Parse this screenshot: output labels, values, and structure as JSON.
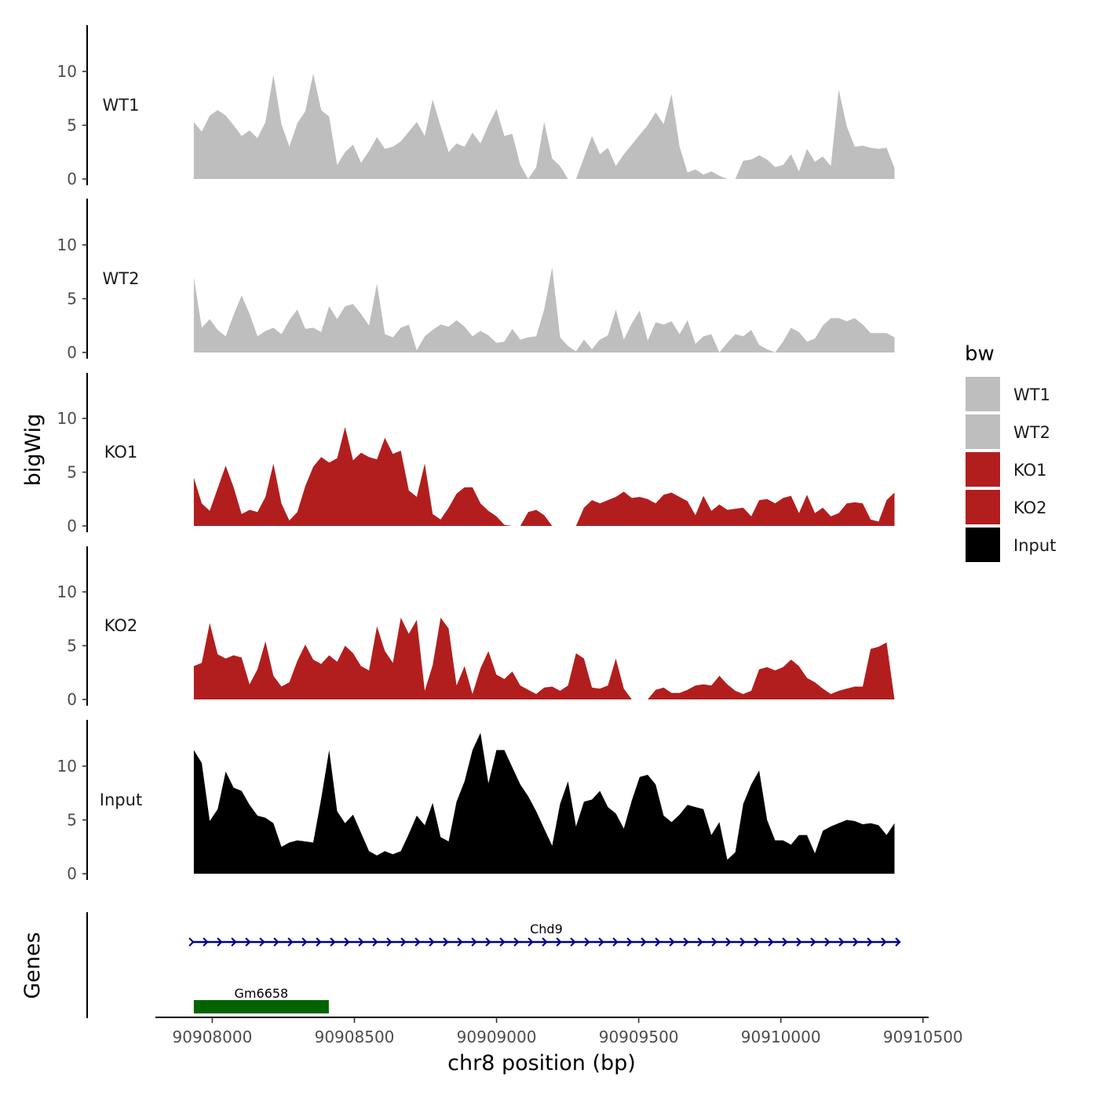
{
  "chart_data": {
    "type": "area",
    "y_axis_label": "bigWig",
    "x_axis_label": "chr8 position (bp)",
    "x_range": [
      90907800,
      90910520
    ],
    "data_x_range": [
      90907935,
      90910400
    ],
    "y_range": [
      0,
      14
    ],
    "y_ticks": [
      "0",
      "5",
      "10"
    ],
    "x_ticks": [
      "90908000",
      "90908500",
      "90909000",
      "90909500",
      "90910000",
      "90910500"
    ],
    "legend": {
      "title": "bw",
      "position": "right",
      "items": [
        {
          "label": "WT1",
          "color": "#bebebe"
        },
        {
          "label": "WT2",
          "color": "#bebebe"
        },
        {
          "label": "KO1",
          "color": "#b21e1e"
        },
        {
          "label": "KO2",
          "color": "#b21e1e"
        },
        {
          "label": "Input",
          "color": "#000000"
        }
      ]
    },
    "series": [
      {
        "name": "WT1",
        "color": "#bebebe",
        "values": [
          5.3,
          4.4,
          5.9,
          6.4,
          5.9,
          5.0,
          4.0,
          4.5,
          3.8,
          5.3,
          9.7,
          5.1,
          3.0,
          5.2,
          6.3,
          9.8,
          6.4,
          5.8,
          1.3,
          2.5,
          3.2,
          1.5,
          2.6,
          3.9,
          2.8,
          3.0,
          3.5,
          4.4,
          5.3,
          4.0,
          7.4,
          4.9,
          2.5,
          3.3,
          3.0,
          4.3,
          3.3,
          5.0,
          6.5,
          4.0,
          4.2,
          1.3,
          0.0,
          1.1,
          5.3,
          1.9,
          1.2,
          0.0,
          0.0,
          2.0,
          4.0,
          2.3,
          2.9,
          1.2,
          2.3,
          3.2,
          4.1,
          5.0,
          6.2,
          5.1,
          7.9,
          3.0,
          0.6,
          0.9,
          0.4,
          0.7,
          0.3,
          0.0,
          0.0,
          1.7,
          1.8,
          2.2,
          1.8,
          1.1,
          1.3,
          2.3,
          0.7,
          2.8,
          1.6,
          2.1,
          1.2,
          8.3,
          4.9,
          3.0,
          3.1,
          2.9,
          2.8,
          2.9,
          1.0
        ]
      },
      {
        "name": "WT2",
        "color": "#bebebe",
        "values": [
          7.0,
          2.3,
          3.1,
          2.1,
          1.5,
          3.5,
          5.3,
          3.6,
          1.5,
          2.0,
          2.3,
          1.7,
          3.0,
          4.0,
          2.2,
          2.3,
          1.9,
          4.3,
          3.1,
          4.3,
          4.5,
          3.6,
          2.5,
          6.4,
          1.7,
          1.4,
          2.3,
          2.6,
          0.2,
          1.5,
          2.1,
          2.6,
          2.4,
          3.0,
          2.4,
          1.5,
          2.0,
          1.6,
          0.9,
          1.0,
          2.2,
          1.2,
          1.4,
          1.5,
          4.0,
          7.9,
          1.4,
          0.6,
          0.1,
          1.2,
          0.3,
          1.2,
          1.6,
          4.0,
          1.2,
          2.7,
          3.9,
          1.1,
          2.8,
          2.6,
          2.9,
          1.7,
          3.0,
          0.8,
          1.5,
          1.7,
          0.0,
          0.9,
          1.7,
          1.5,
          2.1,
          0.7,
          0.3,
          0.0,
          1.0,
          2.3,
          1.9,
          1.0,
          1.3,
          2.5,
          3.2,
          3.2,
          2.9,
          3.2,
          2.6,
          1.8,
          1.8,
          1.8,
          1.4
        ]
      },
      {
        "name": "KO1",
        "color": "#b21e1e",
        "values": [
          4.5,
          2.1,
          1.4,
          3.5,
          5.6,
          3.6,
          1.1,
          1.5,
          1.3,
          2.7,
          5.8,
          2.1,
          0.5,
          1.3,
          3.7,
          5.5,
          6.4,
          5.9,
          6.3,
          9.2,
          6.1,
          6.8,
          6.4,
          6.2,
          8.2,
          6.7,
          7.0,
          3.3,
          2.7,
          5.8,
          1.1,
          0.6,
          1.7,
          3.0,
          3.6,
          3.6,
          2.1,
          1.4,
          0.9,
          0.1,
          0.0,
          0.0,
          1.3,
          1.5,
          1.0,
          0.0,
          0.0,
          0.0,
          0.0,
          1.7,
          2.4,
          2.1,
          2.4,
          2.7,
          3.2,
          2.6,
          2.7,
          2.5,
          2.1,
          2.9,
          3.1,
          2.7,
          2.3,
          1.0,
          2.8,
          1.4,
          2.0,
          1.5,
          1.6,
          1.7,
          0.9,
          2.4,
          2.5,
          2.1,
          2.6,
          2.8,
          1.2,
          2.9,
          1.2,
          1.7,
          0.9,
          1.2,
          2.1,
          2.2,
          2.1,
          0.6,
          0.4,
          2.4,
          3.1
        ]
      },
      {
        "name": "KO2",
        "color": "#b21e1e",
        "values": [
          3.1,
          3.4,
          7.1,
          4.2,
          3.8,
          4.1,
          3.9,
          1.4,
          2.8,
          5.4,
          2.2,
          1.2,
          1.6,
          3.6,
          5.1,
          3.7,
          3.3,
          4.1,
          3.5,
          5.0,
          4.3,
          3.1,
          2.7,
          6.8,
          4.5,
          3.4,
          7.6,
          6.1,
          7.4,
          0.8,
          3.2,
          7.6,
          6.6,
          1.3,
          3.1,
          0.5,
          2.9,
          4.5,
          2.3,
          1.9,
          2.6,
          1.3,
          0.9,
          0.5,
          1.1,
          1.2,
          0.8,
          1.3,
          4.3,
          3.8,
          1.1,
          1.0,
          1.3,
          3.8,
          1.0,
          0.0,
          0.0,
          0.0,
          0.9,
          1.1,
          0.6,
          0.6,
          0.9,
          1.3,
          1.4,
          1.3,
          2.2,
          1.4,
          0.8,
          0.5,
          0.8,
          2.8,
          3.0,
          2.7,
          3.0,
          3.7,
          3.1,
          2.0,
          1.6,
          1.0,
          0.5,
          0.8,
          1.0,
          1.2,
          1.2,
          4.7,
          4.9,
          5.3,
          0.0
        ]
      },
      {
        "name": "Input",
        "color": "#000000",
        "values": [
          11.5,
          10.3,
          4.9,
          6.0,
          9.5,
          8.0,
          7.7,
          6.4,
          5.4,
          5.2,
          4.7,
          2.5,
          2.9,
          3.1,
          3.0,
          2.9,
          7.0,
          11.5,
          5.8,
          4.7,
          5.5,
          3.8,
          2.1,
          1.7,
          2.1,
          1.8,
          2.1,
          3.7,
          5.4,
          4.5,
          6.6,
          3.4,
          3.0,
          6.7,
          8.6,
          11.5,
          13.1,
          8.4,
          11.5,
          11.5,
          9.9,
          8.3,
          7.2,
          5.8,
          4.2,
          2.6,
          6.5,
          8.6,
          4.4,
          6.7,
          6.9,
          7.7,
          6.2,
          5.6,
          4.2,
          6.8,
          9.0,
          9.2,
          8.3,
          5.4,
          4.8,
          5.5,
          6.4,
          6.2,
          6.0,
          3.6,
          4.8,
          1.3,
          2.0,
          6.5,
          8.3,
          9.6,
          5.0,
          3.1,
          3.1,
          2.7,
          3.6,
          3.6,
          1.9,
          4.0,
          4.4,
          4.7,
          5.0,
          4.9,
          4.6,
          4.7,
          4.5,
          3.6,
          4.7
        ]
      }
    ],
    "genes_track_label": "Genes",
    "genes": [
      {
        "name": "Chd9",
        "start": 90907930,
        "end": 90910420,
        "strand": "+",
        "color": "#00008b"
      },
      {
        "name": "Gm6658",
        "start": 90907935,
        "end": 90908410,
        "strand": "+",
        "color": "#006400"
      }
    ]
  }
}
